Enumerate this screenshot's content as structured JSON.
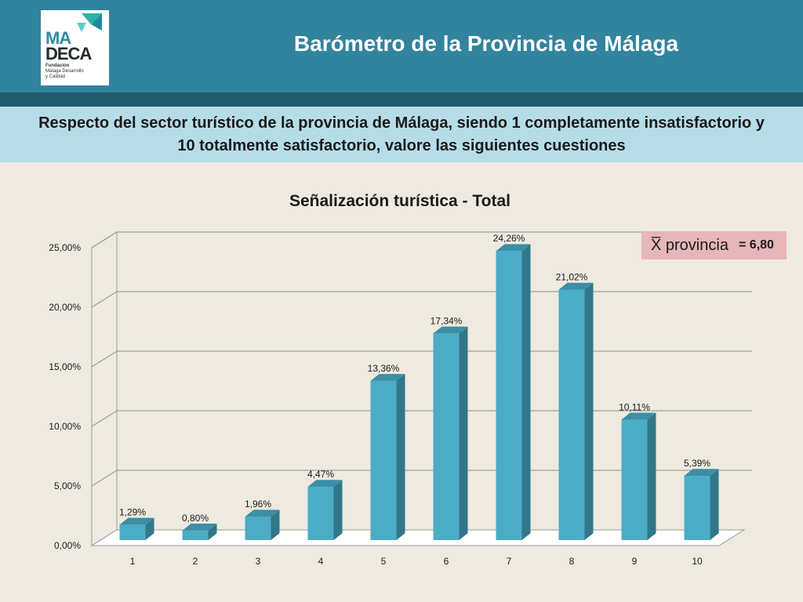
{
  "header": {
    "title": "Barómetro de la Provincia de Málaga",
    "logo": {
      "line1": "MA",
      "line2": "DECA",
      "line3": "Fundación",
      "line4": "Málaga Desarrollo",
      "line5": "y Calidad"
    }
  },
  "subtitle": "Respecto del sector turístico de la provincia de Málaga, siendo 1 completamente insatisfactorio y 10 totalmente satisfactorio, valore las siguientes cuestiones",
  "mean_box": {
    "label": "X̅ provincia",
    "value": "= 6,80"
  },
  "colors": {
    "header": "#31839e",
    "header_band": "#215b6e",
    "subtitle_band": "#b6dce7",
    "bar_front": "#4bacc6",
    "bar_side": "#31778a",
    "bar_top": "#3b8ea5",
    "mean_box": "#e6b6b8"
  },
  "chart_data": {
    "type": "bar",
    "title": "Señalización turística - Total",
    "categories": [
      "1",
      "2",
      "3",
      "4",
      "5",
      "6",
      "7",
      "8",
      "9",
      "10"
    ],
    "values": [
      1.29,
      0.8,
      1.96,
      4.47,
      13.36,
      17.34,
      24.26,
      21.02,
      10.11,
      5.39
    ],
    "data_labels": [
      "1,29%",
      "0,80%",
      "1,96%",
      "4,47%",
      "13,36%",
      "17,34%",
      "24,26%",
      "21,02%",
      "10,11%",
      "5,39%"
    ],
    "yticks": [
      0,
      5,
      10,
      15,
      20,
      25
    ],
    "ytick_labels": [
      "0,00%",
      "5,00%",
      "10,00%",
      "15,00%",
      "20,00%",
      "25,00%"
    ],
    "ylim": [
      0,
      25
    ],
    "xlabel": "",
    "ylabel": "",
    "grid": true,
    "legend": "none",
    "style": "3d-column"
  }
}
